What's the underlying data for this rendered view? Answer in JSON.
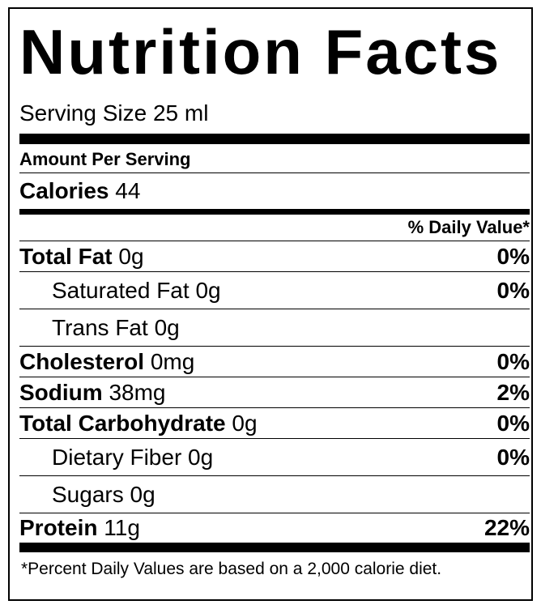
{
  "title": "Nutrition Facts",
  "serving_size": "Serving Size 25 ml",
  "amount_per_serving": "Amount Per Serving",
  "calories": {
    "label": "Calories",
    "amount": "44"
  },
  "daily_value_header": "% Daily Value*",
  "nutrients": [
    {
      "name": "Total Fat",
      "amount": "0g",
      "daily_value": "0%",
      "subrows": [
        {
          "name": "Saturated Fat",
          "amount": "0g",
          "daily_value": "0%"
        },
        {
          "name": "Trans Fat",
          "amount": "0g"
        }
      ]
    },
    {
      "name": "Cholesterol",
      "amount": "0mg",
      "daily_value": "0%"
    },
    {
      "name": "Sodium",
      "amount": "38mg",
      "daily_value": "2%"
    },
    {
      "name": "Total Carbohydrate",
      "amount": "0g",
      "daily_value": "0%",
      "subrows": [
        {
          "name": "Dietary Fiber",
          "amount": "0g",
          "daily_value": "0%"
        },
        {
          "name": "Sugars",
          "amount": "0g"
        }
      ]
    },
    {
      "name": "Protein",
      "amount": "11g",
      "daily_value": "22%"
    }
  ],
  "footnote": "*Percent Daily Values are based on a 2,000 calorie diet."
}
